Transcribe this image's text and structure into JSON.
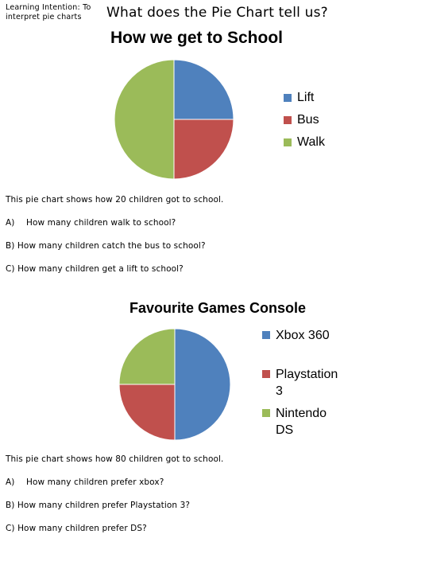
{
  "header": {
    "learning_intention": "Learning Intention: To interpret pie charts",
    "title": "What does the Pie Chart tell us?"
  },
  "chart_data": [
    {
      "type": "pie",
      "title": "How we get to School",
      "categories": [
        "Lift",
        "Bus",
        "Walk"
      ],
      "values": [
        25,
        25,
        50
      ],
      "colors": [
        "#4f81bd",
        "#c0504d",
        "#9bbb59"
      ],
      "legend": "right"
    },
    {
      "type": "pie",
      "title": "Favourite Games Console",
      "categories": [
        "Xbox 360",
        "Playstation 3",
        "Nintendo DS"
      ],
      "legend_lines": [
        [
          "Xbox 360"
        ],
        [
          "Playstation",
          "3"
        ],
        [
          "Nintendo",
          "DS"
        ]
      ],
      "values": [
        50,
        25,
        25
      ],
      "colors": [
        "#4f81bd",
        "#c0504d",
        "#9bbb59"
      ],
      "legend": "right"
    }
  ],
  "section1": {
    "intro": "This pie chart shows how 20 children got to school.",
    "questions": [
      {
        "label": "A)",
        "text": "How many children walk to school?"
      },
      {
        "label": "",
        "text": "B) How many children catch the bus to school?"
      },
      {
        "label": "",
        "text": "C) How many children get a lift to school?"
      }
    ]
  },
  "section2": {
    "intro": "This pie chart shows how 80 children got to school.",
    "questions": [
      {
        "label": "A)",
        "text": "How many children  prefer xbox?"
      },
      {
        "label": "",
        "text": "B) How many children  prefer Playstation 3?"
      },
      {
        "label": "",
        "text": "C) How many children prefer DS?"
      }
    ]
  }
}
